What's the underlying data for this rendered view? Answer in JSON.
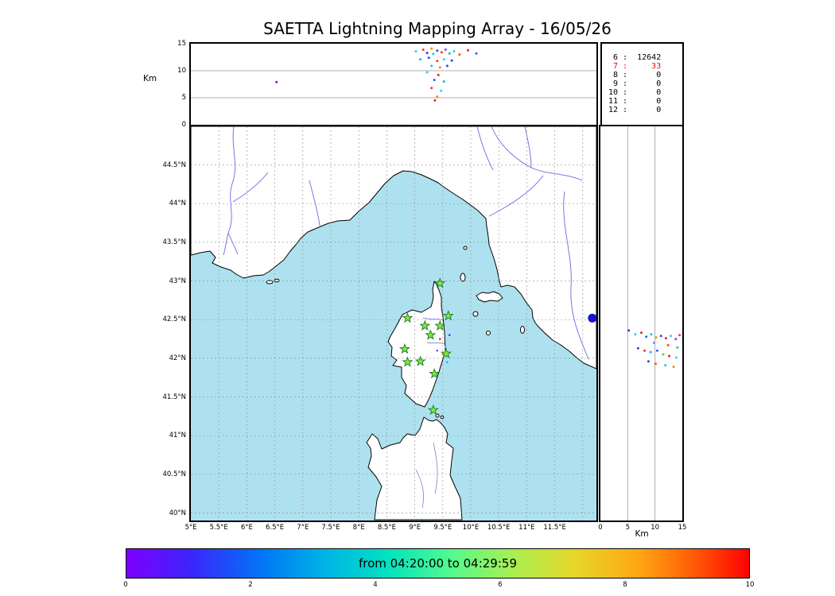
{
  "title": "SAETTA Lightning Mapping Array - 16/05/26",
  "axes": {
    "alt": {
      "label": "Km",
      "max": 15,
      "ticks": [
        {
          "v": 0,
          "label": "0"
        },
        {
          "v": 5,
          "label": "5"
        },
        {
          "v": 10,
          "label": "10"
        },
        {
          "v": 15,
          "label": "15"
        }
      ]
    },
    "lat": {
      "ticks": [
        {
          "v": 44.5,
          "label": "44.5°N"
        },
        {
          "v": 44,
          "label": "44°N"
        },
        {
          "v": 43.5,
          "label": "43.5°N"
        },
        {
          "v": 43,
          "label": "43°N"
        },
        {
          "v": 42.5,
          "label": "42.5°N"
        },
        {
          "v": 42,
          "label": "42°N"
        },
        {
          "v": 41.5,
          "label": "41.5°N"
        },
        {
          "v": 41,
          "label": "41°N"
        },
        {
          "v": 40.5,
          "label": "40.5°N"
        },
        {
          "v": 40,
          "label": "40°N"
        }
      ]
    },
    "lon": {
      "ticks": [
        {
          "v": 5,
          "label": "5°E"
        },
        {
          "v": 5.5,
          "label": "5.5°E"
        },
        {
          "v": 6,
          "label": "6°E"
        },
        {
          "v": 6.5,
          "label": "6.5°E"
        },
        {
          "v": 7,
          "label": "7°E"
        },
        {
          "v": 7.5,
          "label": "7.5°E"
        },
        {
          "v": 8,
          "label": "8°E"
        },
        {
          "v": 8.5,
          "label": "8.5°E"
        },
        {
          "v": 9,
          "label": "9°E"
        },
        {
          "v": 9.5,
          "label": "9.5°E"
        },
        {
          "v": 10,
          "label": "10°E"
        },
        {
          "v": 10.5,
          "label": "10.5°E"
        },
        {
          "v": 11,
          "label": "11°E"
        },
        {
          "v": 11.5,
          "label": "11.5°E"
        }
      ]
    }
  },
  "stats": {
    "rows": [
      {
        "level": "6",
        "count": "12642",
        "color": "#000000"
      },
      {
        "level": "7",
        "count": "33",
        "color": "#ff0000"
      },
      {
        "level": "8",
        "count": "0",
        "color": "#000000"
      },
      {
        "level": "9",
        "count": "0",
        "color": "#000000"
      },
      {
        "level": "10",
        "count": "0",
        "color": "#000000"
      },
      {
        "level": "11",
        "count": "0",
        "color": "#000000"
      },
      {
        "level": "12",
        "count": "0",
        "color": "#000000"
      }
    ]
  },
  "colorbar": {
    "label": "from 04:20:00 to 04:29:59",
    "min": 0,
    "max": 10,
    "ticks": [
      {
        "v": 0,
        "label": "0"
      },
      {
        "v": 2,
        "label": "2"
      },
      {
        "v": 4,
        "label": "4"
      },
      {
        "v": 6,
        "label": "6"
      },
      {
        "v": 8,
        "label": "8"
      },
      {
        "v": 10,
        "label": "10"
      }
    ],
    "gradient": [
      "#7f00ff 0%",
      "#3d23fb 10%",
      "#0077f5 22%",
      "#00b4e6 32%",
      "#00e3c0 42%",
      "#52fa8e 52%",
      "#a8ef52 62%",
      "#e6d628 72%",
      "#ffa814 82%",
      "#ff5c07 91%",
      "#ff0000 100%"
    ]
  },
  "colors": {
    "sea": "#aee1f0",
    "land": "#ffffff",
    "coast": "#000000",
    "river": "#5b5bd6",
    "grid": "#888888",
    "panel_grid": "#999999",
    "station_fill": "#7ce84a",
    "station_edge": "#1f7a1f",
    "big_point": "#1515cc"
  },
  "chart_data": {
    "type": "scatter",
    "title": "SAETTA Lightning Mapping Array - 16/05/26",
    "time_window": "from 04:20:00 to 04:29:59",
    "stats_counts": {
      "6": 12642,
      "7": 33,
      "8": 0,
      "9": 0,
      "10": 0,
      "11": 0,
      "12": 0
    },
    "panels": {
      "alt_vs_lon": {
        "ylabel": "Km",
        "ylim": [
          0,
          15
        ],
        "xlim": [
          5,
          12.24
        ],
        "grid_alt": [
          5,
          10
        ],
        "points": [
          [
            6.53,
            7.9,
            "#9900ee"
          ],
          [
            9.02,
            13.6,
            "#33ccff"
          ],
          [
            9.15,
            13.9,
            "#ff3322"
          ],
          [
            9.22,
            13.3,
            "#2244ff"
          ],
          [
            9.3,
            14.1,
            "#ff8800"
          ],
          [
            9.33,
            13.1,
            "#00ccee"
          ],
          [
            9.4,
            13.7,
            "#3344ff"
          ],
          [
            9.48,
            13.4,
            "#ff3322"
          ],
          [
            9.55,
            13.9,
            "#8844ff"
          ],
          [
            9.62,
            13.2,
            "#00bbee"
          ],
          [
            9.7,
            13.6,
            "#33ccff"
          ],
          [
            9.8,
            13.0,
            "#ff5500"
          ],
          [
            9.95,
            13.8,
            "#ee2222"
          ],
          [
            10.1,
            13.2,
            "#2266ff"
          ],
          [
            9.1,
            12.1,
            "#00bbee"
          ],
          [
            9.25,
            12.4,
            "#3344ff"
          ],
          [
            9.4,
            11.8,
            "#ff3322"
          ],
          [
            9.52,
            12.1,
            "#33ccff"
          ],
          [
            9.66,
            11.9,
            "#2244ff"
          ],
          [
            9.3,
            10.9,
            "#00ccee"
          ],
          [
            9.45,
            10.6,
            "#ff8800"
          ],
          [
            9.58,
            10.9,
            "#3344ff"
          ],
          [
            9.22,
            9.7,
            "#33ccff"
          ],
          [
            9.42,
            9.2,
            "#ee2222"
          ],
          [
            9.35,
            8.3,
            "#2266ff"
          ],
          [
            9.52,
            8.0,
            "#00bbee"
          ],
          [
            9.3,
            6.8,
            "#ff3322"
          ],
          [
            9.47,
            6.3,
            "#33ccff"
          ],
          [
            9.4,
            5.2,
            "#ff8800"
          ],
          [
            9.36,
            4.5,
            "#ee2222"
          ]
        ]
      },
      "map": {
        "lon_range": [
          5,
          12.24
        ],
        "lat_range": [
          39.91,
          45
        ],
        "stations": [
          [
            9.45,
            42.97
          ],
          [
            8.87,
            42.52
          ],
          [
            9.6,
            42.55
          ],
          [
            9.18,
            42.42
          ],
          [
            9.45,
            42.42
          ],
          [
            9.28,
            42.3
          ],
          [
            8.82,
            42.12
          ],
          [
            9.56,
            42.06
          ],
          [
            8.87,
            41.95
          ],
          [
            9.1,
            41.96
          ],
          [
            9.35,
            41.8
          ],
          [
            9.33,
            41.33
          ]
        ],
        "points": [
          [
            9.45,
            42.25,
            "#ee2222"
          ],
          [
            9.55,
            42.15,
            "#33ccff"
          ],
          [
            9.62,
            42.3,
            "#2244ff"
          ],
          [
            9.5,
            42.05,
            "#ff8800"
          ],
          [
            9.58,
            41.95,
            "#00bbee"
          ],
          [
            9.4,
            42.1,
            "#8844ff"
          ]
        ],
        "big_point": [
          12.17,
          42.52,
          "#1515cc",
          5.5
        ]
      },
      "alt_vs_lat": {
        "xlabel": "Km",
        "xlim": [
          0,
          15
        ],
        "ylim": [
          39.91,
          45
        ],
        "grid_alt": [
          5,
          10
        ],
        "points": [
          [
            5.2,
            42.36,
            "#2244ff"
          ],
          [
            6.4,
            42.31,
            "#33ccff"
          ],
          [
            7.5,
            42.33,
            "#ee2222"
          ],
          [
            8.4,
            42.28,
            "#2266ff"
          ],
          [
            9.3,
            42.31,
            "#00ccee"
          ],
          [
            10.2,
            42.27,
            "#ff8800"
          ],
          [
            11.1,
            42.29,
            "#3344ff"
          ],
          [
            12.0,
            42.26,
            "#ee2222"
          ],
          [
            12.9,
            42.29,
            "#33ccff"
          ],
          [
            13.8,
            42.25,
            "#8844ff"
          ],
          [
            14.5,
            42.3,
            "#ff3322"
          ],
          [
            6.9,
            42.13,
            "#2244ff"
          ],
          [
            8.1,
            42.1,
            "#ff3322"
          ],
          [
            9.2,
            42.08,
            "#00bbee"
          ],
          [
            10.4,
            42.1,
            "#2266ff"
          ],
          [
            11.5,
            42.05,
            "#44dd44"
          ],
          [
            12.6,
            42.03,
            "#ee2222"
          ],
          [
            13.9,
            42.01,
            "#33ccff"
          ],
          [
            8.8,
            41.96,
            "#3344ff"
          ],
          [
            10.1,
            41.93,
            "#ff5500"
          ],
          [
            11.9,
            41.91,
            "#00ccee"
          ],
          [
            13.4,
            41.89,
            "#ff8800"
          ],
          [
            9.8,
            42.2,
            "#8888ff"
          ],
          [
            12.4,
            42.17,
            "#ff4444"
          ],
          [
            14.1,
            42.14,
            "#00cccc"
          ]
        ]
      }
    }
  }
}
